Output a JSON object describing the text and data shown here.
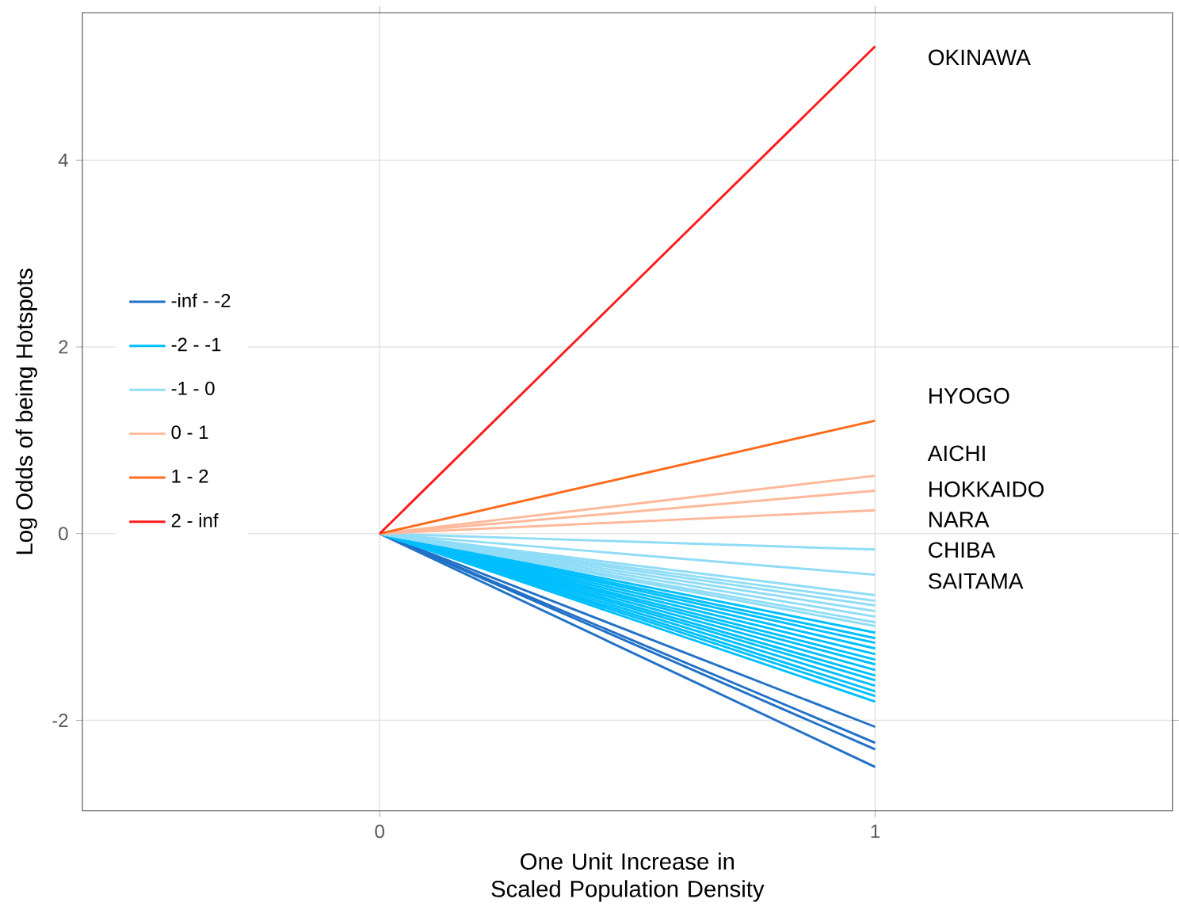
{
  "chart_data": {
    "type": "line",
    "xlabel": "One Unit Increase in Scaled Population Density",
    "ylabel": "Log Odds of being Hotspots",
    "x": [
      0,
      1
    ],
    "xlim": [
      -0.6,
      1.6
    ],
    "xticks": [
      0,
      1
    ],
    "ylim": [
      -2.97,
      5.58
    ],
    "yticks": [
      -2,
      0,
      2,
      4
    ],
    "grid": true,
    "legend": "left",
    "marker": "none",
    "line_style": "solid",
    "series": [
      {
        "name": "-inf - -2",
        "color": "#2171c7",
        "values": [
          0,
          -2.07
        ]
      },
      {
        "color": "#2171c7",
        "values": [
          0,
          -2.24
        ]
      },
      {
        "color": "#2171c7",
        "values": [
          0,
          -2.31
        ]
      },
      {
        "color": "#2171c7",
        "values": [
          0,
          -2.5
        ]
      },
      {
        "name": "-2 - -1",
        "color": "#00bfff",
        "values": [
          0,
          -1.06
        ]
      },
      {
        "color": "#00bfff",
        "values": [
          0,
          -1.12
        ]
      },
      {
        "color": "#00bfff",
        "values": [
          0,
          -1.17
        ]
      },
      {
        "color": "#00bfff",
        "values": [
          0,
          -1.23
        ]
      },
      {
        "color": "#00bfff",
        "values": [
          0,
          -1.29
        ]
      },
      {
        "color": "#00bfff",
        "values": [
          0,
          -1.35
        ]
      },
      {
        "color": "#00bfff",
        "values": [
          0,
          -1.4
        ]
      },
      {
        "color": "#00bfff",
        "values": [
          0,
          -1.46
        ]
      },
      {
        "color": "#00bfff",
        "values": [
          0,
          -1.52
        ]
      },
      {
        "color": "#00bfff",
        "values": [
          0,
          -1.57
        ]
      },
      {
        "color": "#00bfff",
        "values": [
          0,
          -1.63
        ]
      },
      {
        "color": "#00bfff",
        "values": [
          0,
          -1.69
        ]
      },
      {
        "color": "#00bfff",
        "values": [
          0,
          -1.74
        ]
      },
      {
        "color": "#00bfff",
        "values": [
          0,
          -1.8
        ]
      },
      {
        "name": "-1 - 0",
        "color": "#8fdcf7",
        "values": [
          0,
          -0.17
        ]
      },
      {
        "color": "#8fdcf7",
        "values": [
          0,
          -0.44
        ]
      },
      {
        "color": "#8fdcf7",
        "values": [
          0,
          -0.66
        ]
      },
      {
        "color": "#8fdcf7",
        "values": [
          0,
          -0.72
        ]
      },
      {
        "color": "#8fdcf7",
        "values": [
          0,
          -0.77
        ]
      },
      {
        "color": "#8fdcf7",
        "values": [
          0,
          -0.83
        ]
      },
      {
        "color": "#8fdcf7",
        "values": [
          0,
          -0.89
        ]
      },
      {
        "color": "#8fdcf7",
        "values": [
          0,
          -0.95
        ]
      },
      {
        "color": "#8fdcf7",
        "values": [
          0,
          -0.99
        ]
      },
      {
        "name": "0 - 1",
        "color": "#ffb899",
        "values": [
          0,
          0.62
        ]
      },
      {
        "color": "#ffb899",
        "values": [
          0,
          0.46
        ]
      },
      {
        "color": "#ffb899",
        "values": [
          0,
          0.25
        ]
      },
      {
        "name": "1 - 2",
        "color": "#ff6a1a",
        "values": [
          0,
          1.21
        ]
      },
      {
        "name": "2 - inf",
        "color": "#ff1a1a",
        "values": [
          0,
          5.22
        ]
      }
    ],
    "annotations": [
      "OKINAWA",
      "HYOGO",
      "AICHI",
      "HOKKAIDO",
      "NARA",
      "CHIBA",
      "SAITAMA"
    ]
  }
}
